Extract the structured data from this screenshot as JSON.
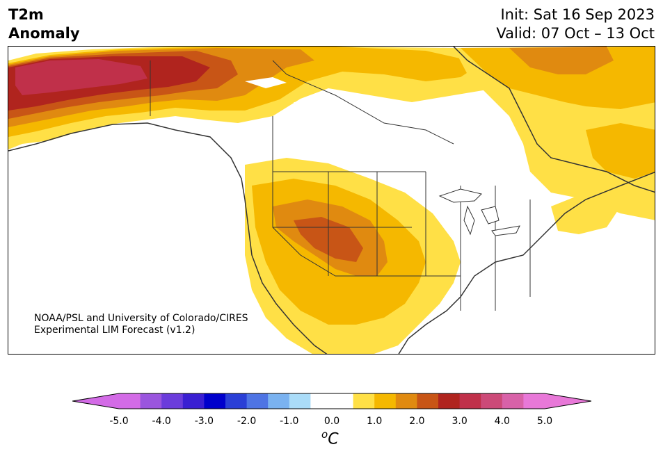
{
  "header": {
    "variable": "T2m",
    "subtitle": "Anomaly",
    "init": "Init: Sat 16 Sep 2023",
    "valid": "Valid: 07 Oct – 13 Oct"
  },
  "credit": {
    "line1": "NOAA/PSL and University of Colorado/CIRES",
    "line2": "Experimental LIM Forecast (v1.2)"
  },
  "colorbar": {
    "unit_super": "o",
    "unit": "C",
    "ticks": [
      "-5.0",
      "-4.0",
      "-3.0",
      "-2.0",
      "-1.0",
      "0.0",
      "1.0",
      "2.0",
      "3.0",
      "4.0",
      "5.0"
    ],
    "colors": [
      "#d36be6",
      "#9a55de",
      "#6b3cdb",
      "#3a1fd2",
      "#0000cc",
      "#2a3fd6",
      "#4e74e4",
      "#7ab2f0",
      "#aadcf8",
      "#ffffff",
      "#ffffff",
      "#ffe046",
      "#f5b800",
      "#e08a10",
      "#c85516",
      "#b0241e",
      "#c0304a",
      "#cc4a78",
      "#d862a8",
      "#e878d8"
    ],
    "extend_low": "#d36be6",
    "extend_high": "#e878d8"
  },
  "map": {
    "region": "North America",
    "shading": {
      "white": "#ffffff",
      "yellow": "#ffe046",
      "gold": "#f5b800",
      "orange": "#e08a10",
      "dark_orange": "#c85516",
      "red": "#b0241e",
      "crimson": "#c0304a"
    },
    "border_color": "#333333"
  }
}
